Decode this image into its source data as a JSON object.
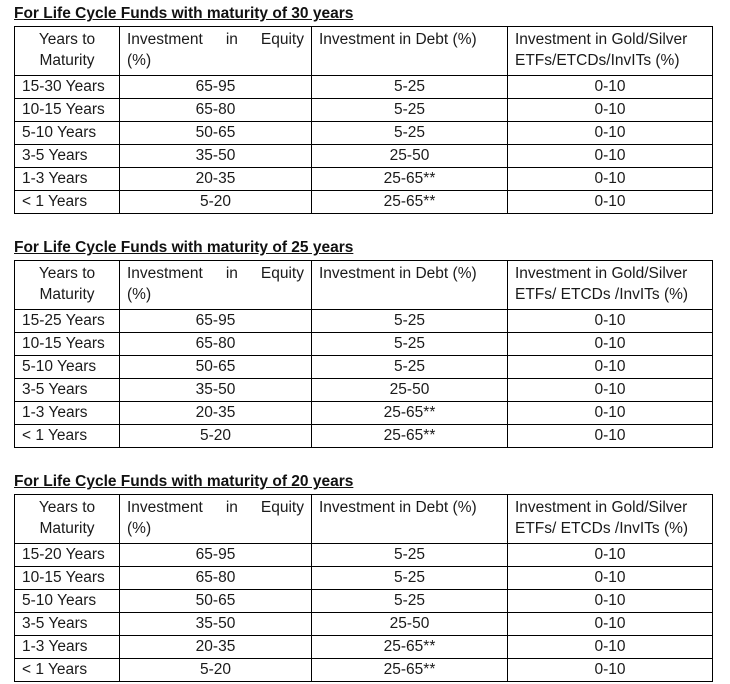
{
  "page": {
    "background": "#ffffff",
    "text_color": "#1a1a1a",
    "border_color": "#000000"
  },
  "tables": [
    {
      "heading": "For Life Cycle Funds with maturity of 30 years",
      "headers": {
        "years_lines": [
          "Years to",
          "Maturity"
        ],
        "equity_lines": [
          "Investment in Equity",
          "(%)"
        ],
        "debt": "Investment in Debt (%)",
        "gold_lines": [
          "Investment in Gold/Silver",
          "ETFs/ETCDs/InvITs (%)"
        ]
      },
      "rows": [
        {
          "years": "15-30 Years",
          "equity": "65-95",
          "debt": "5-25",
          "gold": "0-10"
        },
        {
          "years": "10-15 Years",
          "equity": "65-80",
          "debt": "5-25",
          "gold": "0-10"
        },
        {
          "years": "5-10 Years",
          "equity": "50-65",
          "debt": "5-25",
          "gold": "0-10"
        },
        {
          "years": "3-5 Years",
          "equity": "35-50",
          "debt": "25-50",
          "gold": "0-10"
        },
        {
          "years": "1-3 Years",
          "equity": "20-35",
          "debt": "25-65**",
          "gold": "0-10"
        },
        {
          "years": "< 1 Years",
          "equity": "5-20",
          "debt": "25-65**",
          "gold": "0-10"
        }
      ]
    },
    {
      "heading": "For Life Cycle Funds with maturity of 25 years",
      "headers": {
        "years_lines": [
          "Years to",
          "Maturity"
        ],
        "equity_lines": [
          "Investment in Equity",
          "(%)"
        ],
        "debt": "Investment in Debt (%)",
        "gold_lines": [
          "Investment in Gold/Silver",
          "ETFs/ ETCDs /InvITs (%)"
        ]
      },
      "rows": [
        {
          "years": "15-25 Years",
          "equity": "65-95",
          "debt": "5-25",
          "gold": "0-10"
        },
        {
          "years": "10-15 Years",
          "equity": "65-80",
          "debt": "5-25",
          "gold": "0-10"
        },
        {
          "years": "5-10 Years",
          "equity": "50-65",
          "debt": "5-25",
          "gold": "0-10"
        },
        {
          "years": "3-5 Years",
          "equity": "35-50",
          "debt": "25-50",
          "gold": "0-10"
        },
        {
          "years": "1-3 Years",
          "equity": "20-35",
          "debt": "25-65**",
          "gold": "0-10"
        },
        {
          "years": "< 1 Years",
          "equity": "5-20",
          "debt": "25-65**",
          "gold": "0-10"
        }
      ]
    },
    {
      "heading": "For Life Cycle Funds with maturity of 20 years",
      "headers": {
        "years_lines": [
          "Years to",
          "Maturity"
        ],
        "equity_lines": [
          "Investment in Equity",
          "(%)"
        ],
        "debt": "Investment in Debt (%)",
        "gold_lines": [
          "Investment in Gold/Silver",
          "ETFs/ ETCDs /InvITs (%)"
        ]
      },
      "rows": [
        {
          "years": "15-20 Years",
          "equity": "65-95",
          "debt": "5-25",
          "gold": "0-10"
        },
        {
          "years": "10-15 Years",
          "equity": "65-80",
          "debt": "5-25",
          "gold": "0-10"
        },
        {
          "years": "5-10 Years",
          "equity": "50-65",
          "debt": "5-25",
          "gold": "0-10"
        },
        {
          "years": "3-5 Years",
          "equity": "35-50",
          "debt": "25-50",
          "gold": "0-10"
        },
        {
          "years": "1-3 Years",
          "equity": "20-35",
          "debt": "25-65**",
          "gold": "0-10"
        },
        {
          "years": "< 1 Years",
          "equity": "5-20",
          "debt": "25-65**",
          "gold": "0-10"
        }
      ]
    }
  ]
}
